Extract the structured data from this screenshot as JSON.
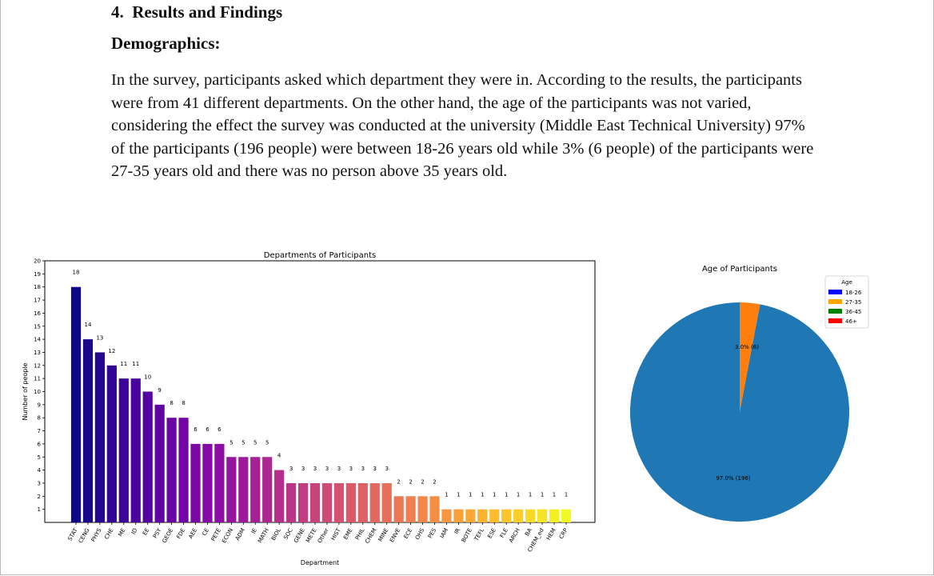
{
  "section_heading": "4.  Results and Findings",
  "sub_heading": "Demographics:",
  "paragraph": "In the survey, participants asked which department they were in. According to the results, the participants were from 41 different departments. On the other hand, the age of the participants was not varied, considering the effect the survey was conducted at the university (Middle East Technical University) 97% of the participants (196 people) were between 18-26 years old while 3% (6 people) of the participants were 27-35 years old and there was no person above 35 years old.",
  "chart_data": [
    {
      "type": "bar",
      "title": "Departments of Participants",
      "xlabel": "Department",
      "ylabel": "Number of people",
      "ylim": [
        0,
        20
      ],
      "yticks": [
        1,
        2,
        3,
        4,
        5,
        6,
        7,
        8,
        9,
        10,
        11,
        12,
        13,
        14,
        15,
        16,
        17,
        18,
        19,
        20
      ],
      "categories": [
        "STAT",
        "CENG",
        "PHYS",
        "CHE",
        "ME",
        "ID",
        "EE",
        "PSY",
        "GEOE",
        "FDE",
        "AEE",
        "CE",
        "PETE",
        "ECON",
        "ADM",
        "IE",
        "MATH",
        "BIOL",
        "SOC",
        "GENE",
        "METE",
        "Other",
        "HIST",
        "EME",
        "PHIL",
        "CHEM",
        "MINE",
        "ENVE",
        "ECE",
        "OHS",
        "PES",
        "IAM",
        "IR",
        "BOTE",
        "TEFL",
        "ESE",
        "FLE",
        "ARCH",
        "BA",
        "CHEM_ed",
        "HEM",
        "CRP"
      ],
      "values": [
        18,
        14,
        13,
        12,
        11,
        11,
        10,
        9,
        8,
        8,
        6,
        6,
        6,
        5,
        5,
        5,
        5,
        4,
        3,
        3,
        3,
        3,
        3,
        3,
        3,
        3,
        3,
        2,
        2,
        2,
        2,
        1,
        1,
        1,
        1,
        1,
        1,
        1,
        1,
        1,
        1,
        1
      ],
      "colormap": "plasma",
      "grid": false
    },
    {
      "type": "pie",
      "title": "Age of Participants",
      "slices": [
        {
          "label": "18-26",
          "value": 196,
          "text": "97.0% (196)",
          "color": "#1f77b4"
        },
        {
          "label": "27-35",
          "value": 6,
          "text": "3.0% (6)",
          "color": "#ff7f0e"
        }
      ],
      "legend": {
        "title": "Age",
        "placement": "top-right",
        "entries": [
          {
            "label": "18-26",
            "color": "#0000ff"
          },
          {
            "label": "27-35",
            "color": "#ffa500"
          },
          {
            "label": "36-45",
            "color": "#008000"
          },
          {
            "label": "46+",
            "color": "#ff0000"
          }
        ]
      }
    }
  ]
}
